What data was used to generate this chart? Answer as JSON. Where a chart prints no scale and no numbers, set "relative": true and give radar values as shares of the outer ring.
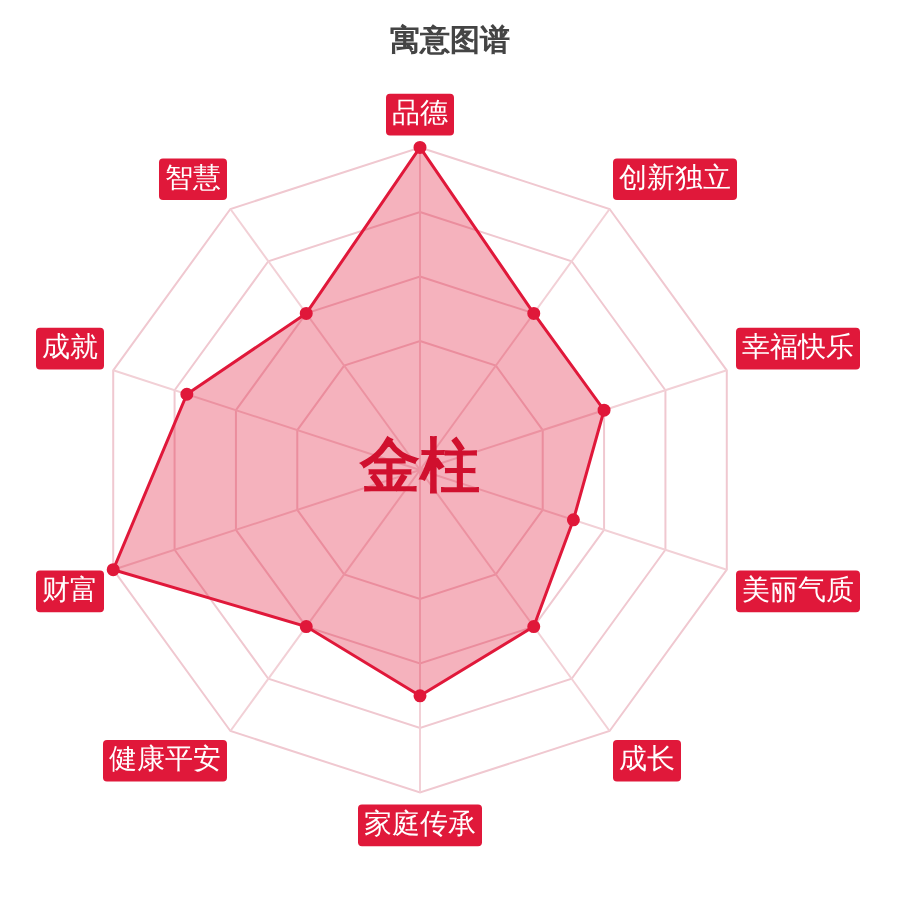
{
  "chart_data": {
    "type": "radar",
    "title": "寓意图谱",
    "categories": [
      "品德",
      "创新独立",
      "幸福快乐",
      "美丽气质",
      "成长",
      "家庭传承",
      "健康平安",
      "财富",
      "成就",
      "智慧"
    ],
    "series": [
      {
        "color": "#e0183a",
        "values": [
          1.0,
          0.6,
          0.6,
          0.5,
          0.6,
          0.7,
          0.6,
          1.0,
          0.76,
          0.6
        ]
      }
    ],
    "relative": true,
    "annotations": [
      "金柱"
    ],
    "marker": "circle",
    "grid": true
  }
}
